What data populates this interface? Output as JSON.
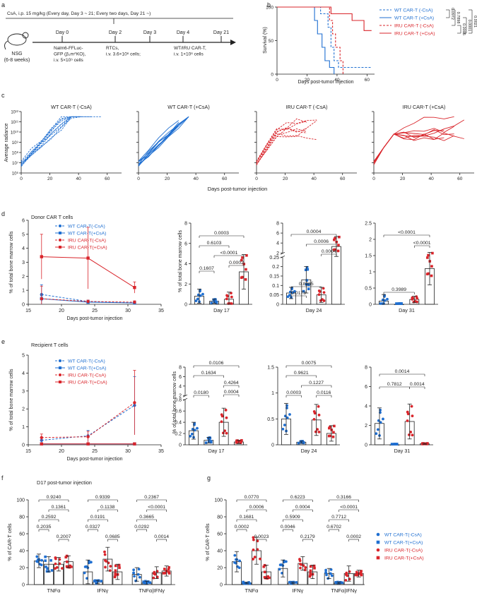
{
  "figure": {
    "panel_labels": [
      "a",
      "b",
      "c",
      "d",
      "e",
      "f",
      "g"
    ],
    "colors": {
      "wt": "#1f6fd1",
      "iru": "#d9252b",
      "axis": "#222222",
      "grid": "#ffffff"
    }
  },
  "panel_a": {
    "title": "CsA, i.p. 15 mg/kg (Every day, Day 3 ~ 21; Every two days, Day 21 ~)",
    "mouse_label": "NSG",
    "mouse_sub": "(6-8 weeks)",
    "days": [
      "Day 0",
      "Day 2",
      "Day 3",
      "Day 4",
      "Day 21"
    ],
    "desc_day0": [
      "Nalm6-FFLuc-",
      "GFP (β₂m^KO),",
      "i.v. 5×10⁵ cells"
    ],
    "desc_day2": [
      "RTCs,",
      "i.v. 3.6×10⁶ cells;"
    ],
    "desc_day4": [
      "WT/IRU CAR-T,",
      "i.v. 1×10⁶ cells"
    ]
  },
  "panel_c": {
    "ylabel": "Average radiance",
    "xlabel": "Days post-tumor injection",
    "titles": [
      "WT CAR-T (-CsA)",
      "WT CAR-T (+CsA)",
      "IRU CAR-T (-CsA)",
      "IRU CAR-T (+CsA)"
    ],
    "yticks": [
      "10⁶",
      "10⁷",
      "10⁸",
      "10⁹",
      "10¹⁰",
      "10¹¹",
      "10¹²"
    ],
    "xticks": [
      "0",
      "20",
      "40",
      "60"
    ]
  },
  "panel_d": {
    "header": "Donor CAR T cells",
    "ylabel": "% of total bone marrow cells",
    "xlabel": "Days post-tumor injection",
    "days": [
      "Day 17",
      "Day 24",
      "Day 31"
    ]
  },
  "panel_e": {
    "header": "Recipient T cells",
    "ylabel": "% of total bone marrow cells",
    "xlabel": "Days post-tumor injection",
    "days": [
      "Day 17",
      "Day 24",
      "Day 31"
    ]
  },
  "panel_fg": {
    "header_f": "D17 post-tumor injection",
    "ylabel": "% of CAR-T cells",
    "cats": [
      "TNFα",
      "IFNγ",
      "TNFα|IFNγ"
    ],
    "legend": [
      "WT CAR-T(-CsA)",
      "WT CAR-T(+CsA)",
      "IRU CAR-T(-CsA)",
      "IRU CAR-T(+CsA)"
    ]
  },
  "chart_data": [
    {
      "id": "b",
      "type": "line",
      "title": "",
      "xlabel": "Days post-tumor injection",
      "ylabel": "Survival (%)",
      "xlim": [
        0,
        65
      ],
      "ylim": [
        0,
        100
      ],
      "xticks": [
        0,
        20,
        40,
        60
      ],
      "yticks": [
        0,
        50,
        100
      ],
      "series": [
        {
          "name": "WT CAR-T (-CsA)",
          "style": "dashed",
          "color": "#1f6fd1",
          "x": [
            0,
            29,
            29,
            34,
            34,
            36,
            36,
            38,
            38,
            41,
            41,
            63
          ],
          "y": [
            100,
            100,
            90,
            90,
            70,
            70,
            40,
            40,
            20,
            20,
            10,
            10
          ]
        },
        {
          "name": "WT CAR-T (+CsA)",
          "style": "solid",
          "color": "#1f6fd1",
          "x": [
            0,
            25,
            25,
            27,
            27,
            30,
            30,
            32,
            32,
            35,
            35,
            38,
            38
          ],
          "y": [
            100,
            100,
            80,
            80,
            60,
            60,
            40,
            40,
            20,
            20,
            10,
            10,
            0
          ]
        },
        {
          "name": "IRU CAR-T (-CsA)",
          "style": "dashed",
          "color": "#d9252b",
          "x": [
            0,
            35,
            35,
            37,
            37,
            39,
            39,
            42,
            42,
            44,
            44
          ],
          "y": [
            100,
            100,
            80,
            80,
            60,
            60,
            40,
            40,
            20,
            20,
            0
          ]
        },
        {
          "name": "IRU CAR-T (+CsA)",
          "style": "solid",
          "color": "#d9252b",
          "x": [
            0,
            36,
            36,
            50,
            50,
            58,
            58,
            63
          ],
          "y": [
            100,
            100,
            90,
            90,
            80,
            80,
            65,
            65
          ]
        }
      ],
      "pvalues": [
        "0.0972",
        "0.7898",
        "0.0005",
        "0.0001",
        "0.0021"
      ],
      "legend": [
        "WT CAR-T (-CsA)",
        "WT CAR-T (+CsA)",
        "IRU CAR-T (-CsA)",
        "IRU CAR-T (+CsA)"
      ]
    },
    {
      "id": "d_line",
      "type": "line",
      "xlabel": "Days post-tumor injection",
      "ylabel": "% of total bone marrow cells",
      "xlim": [
        15,
        35
      ],
      "ylim": [
        0,
        6
      ],
      "xticks": [
        15,
        20,
        25,
        30,
        35
      ],
      "yticks": [
        0,
        1,
        2,
        3,
        4,
        5,
        6
      ],
      "series": [
        {
          "name": "WT CAR-T(-CsA)",
          "x": [
            17,
            24,
            31
          ],
          "y": [
            0.7,
            0.2,
            0.1
          ],
          "err": [
            0.7,
            0.1,
            0.1
          ]
        },
        {
          "name": "WT CAR-T(+CsA)",
          "x": [
            17,
            24,
            31
          ],
          "y": [
            0.4,
            0.15,
            0.1
          ],
          "err": [
            0.2,
            0.1,
            0.05
          ]
        },
        {
          "name": "IRU CAR-T(-CsA)",
          "x": [
            17,
            24,
            31
          ],
          "y": [
            0.4,
            0.2,
            0.15
          ],
          "err": [
            0.9,
            0.1,
            0.1
          ]
        },
        {
          "name": "IRU CAR-T(+CsA)",
          "x": [
            17,
            24,
            31
          ],
          "y": [
            3.4,
            3.3,
            1.2
          ],
          "err": [
            1.6,
            2.2,
            0.4
          ]
        }
      ]
    },
    {
      "id": "d17",
      "type": "bar",
      "title": "Day 17",
      "ylim": [
        0,
        8
      ],
      "yticks": [
        0,
        2,
        4,
        6,
        8
      ],
      "values": [
        0.8,
        0.3,
        0.5,
        3.2
      ],
      "err": [
        0.7,
        0.2,
        0.7,
        1.7
      ],
      "pvalues": [
        "0.0003",
        "0.6103",
        "<0.0001",
        "0.1607",
        "0.0002"
      ]
    },
    {
      "id": "d24",
      "type": "bar",
      "title": "Day 24",
      "ylim_broken": [
        0,
        0.25,
        2,
        8
      ],
      "yticks_low": [
        0,
        0.05,
        0.1,
        0.15,
        0.2,
        0.25
      ],
      "yticks_high": [
        2,
        4,
        6,
        8
      ],
      "values": [
        0.06,
        0.13,
        0.05,
        3.3
      ],
      "err": [
        0.03,
        0.07,
        0.04,
        2.0
      ],
      "pvalues": [
        "0.0004",
        "0.0006",
        "0.0004",
        "0.8965",
        "0.0178"
      ]
    },
    {
      "id": "d31",
      "type": "bar",
      "title": "Day 31",
      "ylim": [
        0,
        2.5
      ],
      "yticks": [
        0,
        0.5,
        1,
        1.5,
        2,
        2.5
      ],
      "values": [
        0.1,
        0.0,
        0.15,
        1.1
      ],
      "err": [
        0.2,
        0.0,
        0.1,
        0.5
      ],
      "pvalues": [
        "<0.0001",
        "<0.0001",
        "0.3989"
      ]
    },
    {
      "id": "e_line",
      "type": "line",
      "xlabel": "Days post-tumor injection",
      "ylabel": "% of total bone marrow cells",
      "xlim": [
        15,
        35
      ],
      "ylim": [
        0,
        5
      ],
      "xticks": [
        15,
        20,
        25,
        30,
        35
      ],
      "yticks": [
        0,
        1,
        2,
        3,
        4,
        5
      ],
      "series": [
        {
          "name": "WT CAR-T(-CsA)",
          "x": [
            17,
            24,
            31
          ],
          "y": [
            0.25,
            0.5,
            2.2
          ],
          "err": [
            0.15,
            0.3,
            1.6
          ]
        },
        {
          "name": "WT CAR-T(+CsA)",
          "x": [
            17,
            24,
            31
          ],
          "y": [
            0.05,
            0.05,
            0.05
          ],
          "err": [
            0.03,
            0.03,
            0.03
          ]
        },
        {
          "name": "IRU CAR-T(-CsA)",
          "x": [
            17,
            24,
            31
          ],
          "y": [
            0.4,
            0.45,
            2.35
          ],
          "err": [
            0.2,
            0.3,
            1.8
          ]
        },
        {
          "name": "IRU CAR-T(+CsA)",
          "x": [
            17,
            24,
            31
          ],
          "y": [
            0.05,
            0.05,
            0.05
          ],
          "err": [
            0.03,
            0.03,
            0.03
          ]
        }
      ]
    },
    {
      "id": "e17",
      "type": "bar",
      "title": "Day 17",
      "ylim_broken": [
        0,
        0.8,
        2,
        8
      ],
      "yticks_low": [
        0,
        0.2,
        0.4,
        0.6,
        0.8
      ],
      "yticks_high": [
        2,
        4,
        6,
        8
      ],
      "values": [
        0.25,
        0.08,
        0.4,
        0.05
      ],
      "err": [
        0.15,
        0.05,
        0.25,
        0.03
      ],
      "pvalues": [
        "0.0106",
        "0.1634",
        "0.4264",
        "0.0180",
        "0.0004"
      ]
    },
    {
      "id": "e24",
      "type": "bar",
      "title": "Day 24",
      "ylim": [
        0,
        1.5
      ],
      "yticks": [
        0,
        0.5,
        1,
        1.5
      ],
      "values": [
        0.5,
        0.05,
        0.48,
        0.22
      ],
      "err": [
        0.3,
        0.02,
        0.3,
        0.15
      ],
      "pvalues": [
        "0.0075",
        "0.9621",
        "0.1227",
        "0.0003",
        "0.0116"
      ]
    },
    {
      "id": "e31",
      "type": "bar",
      "title": "Day 31",
      "ylim": [
        0,
        8
      ],
      "yticks": [
        0,
        2,
        4,
        6,
        8
      ],
      "values": [
        2.2,
        0.0,
        2.4,
        0.1
      ],
      "err": [
        1.6,
        0.0,
        1.8,
        0.05
      ],
      "pvalues": [
        "0.0014",
        "0.7812",
        "0.0014"
      ]
    },
    {
      "id": "f",
      "type": "bar",
      "title": "D17 post-tumor injection",
      "ylabel": "% of CAR-T cells",
      "ylim": [
        0,
        100
      ],
      "yticks": [
        0,
        20,
        40,
        60,
        80,
        100
      ],
      "categories": [
        "TNFα",
        "IFNγ",
        "TNFα|IFNγ"
      ],
      "series": [
        {
          "name": "WT CAR-T(-CsA)",
          "values": [
            28,
            15,
            12
          ],
          "err": [
            8,
            14,
            8
          ]
        },
        {
          "name": "WT CAR-T(+CsA)",
          "values": [
            24,
            3,
            2
          ],
          "err": [
            9,
            2,
            2
          ]
        },
        {
          "name": "IRU CAR-T(-CsA)",
          "values": [
            24,
            30,
            14
          ],
          "err": [
            8,
            14,
            7
          ]
        },
        {
          "name": "IRU CAR-T(+CsA)",
          "values": [
            27,
            15,
            16
          ],
          "err": [
            7,
            9,
            6
          ]
        }
      ],
      "pvalues_tnfa": [
        "0.9240",
        "0.1361",
        "0.2592",
        "0.2035",
        "0.2007"
      ],
      "pvalues_ifng": [
        "0.9339",
        "0.1138",
        "0.0191",
        "0.0327",
        "0.0685"
      ],
      "pvalues_both": [
        "0.2367",
        "<0.0001",
        "0.3665",
        "0.0292",
        "0.0014"
      ]
    },
    {
      "id": "g",
      "type": "bar",
      "ylabel": "% of CAR-T cells",
      "ylim": [
        0,
        100
      ],
      "yticks": [
        0,
        20,
        40,
        60,
        80,
        100
      ],
      "categories": [
        "TNFα",
        "IFNγ",
        "TNFα|IFNγ"
      ],
      "series": [
        {
          "name": "WT CAR-T(-CsA)",
          "values": [
            27,
            19,
            13
          ],
          "err": [
            12,
            10,
            6
          ]
        },
        {
          "name": "WT CAR-T(+CsA)",
          "values": [
            2,
            2,
            2
          ],
          "err": [
            1,
            1,
            1
          ]
        },
        {
          "name": "IRU CAR-T(-CsA)",
          "values": [
            40,
            25,
            13
          ],
          "err": [
            16,
            8,
            9
          ]
        },
        {
          "name": "IRU CAR-T(+CsA)",
          "values": [
            15,
            15,
            13
          ],
          "err": [
            8,
            8,
            4
          ]
        }
      ],
      "pvalues_tnfa": [
        "0.0770",
        "0.0006",
        "0.1681",
        "0.0002",
        "0.0023"
      ],
      "pvalues_ifng": [
        "0.6223",
        "0.0004",
        "0.5909",
        "0.0046",
        "0.2179"
      ],
      "pvalues_both": [
        "0.3166",
        "<0.0001",
        "0.7712",
        "0.6702",
        "0.0002"
      ]
    }
  ]
}
